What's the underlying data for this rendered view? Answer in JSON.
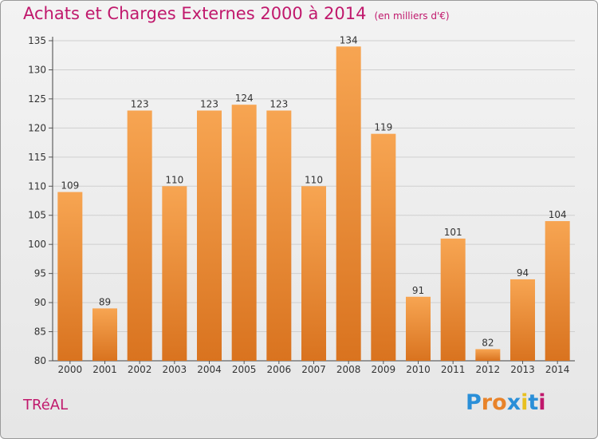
{
  "title": "Achats et Charges Externes 2000 à 2014",
  "title_unit": "(en milliers d'€)",
  "commune": "TRéAL",
  "logo": {
    "text": "Proxiti",
    "colors": [
      "#2a8fd8",
      "#e8832a",
      "#e8832a",
      "#2a8fd8",
      "#e8c020",
      "#2a8fd8",
      "#c0186c"
    ]
  },
  "colors": {
    "title": "#c0186c",
    "bar_light": "#f7a552",
    "bar_dark": "#d9731f",
    "grid": "#cfcfcf"
  },
  "chart_data": {
    "type": "bar",
    "categories": [
      "2000",
      "2001",
      "2002",
      "2003",
      "2004",
      "2005",
      "2006",
      "2007",
      "2008",
      "2009",
      "2010",
      "2011",
      "2012",
      "2013",
      "2014"
    ],
    "values": [
      109,
      89,
      123,
      110,
      123,
      124,
      123,
      110,
      134,
      119,
      91,
      101,
      82,
      94,
      104
    ],
    "ylim": [
      80,
      135
    ],
    "yticks": [
      80,
      85,
      90,
      95,
      100,
      105,
      110,
      115,
      120,
      125,
      130,
      135
    ],
    "grid": true,
    "title": "Achats et Charges Externes 2000 à 2014",
    "xlabel": "",
    "ylabel": ""
  }
}
